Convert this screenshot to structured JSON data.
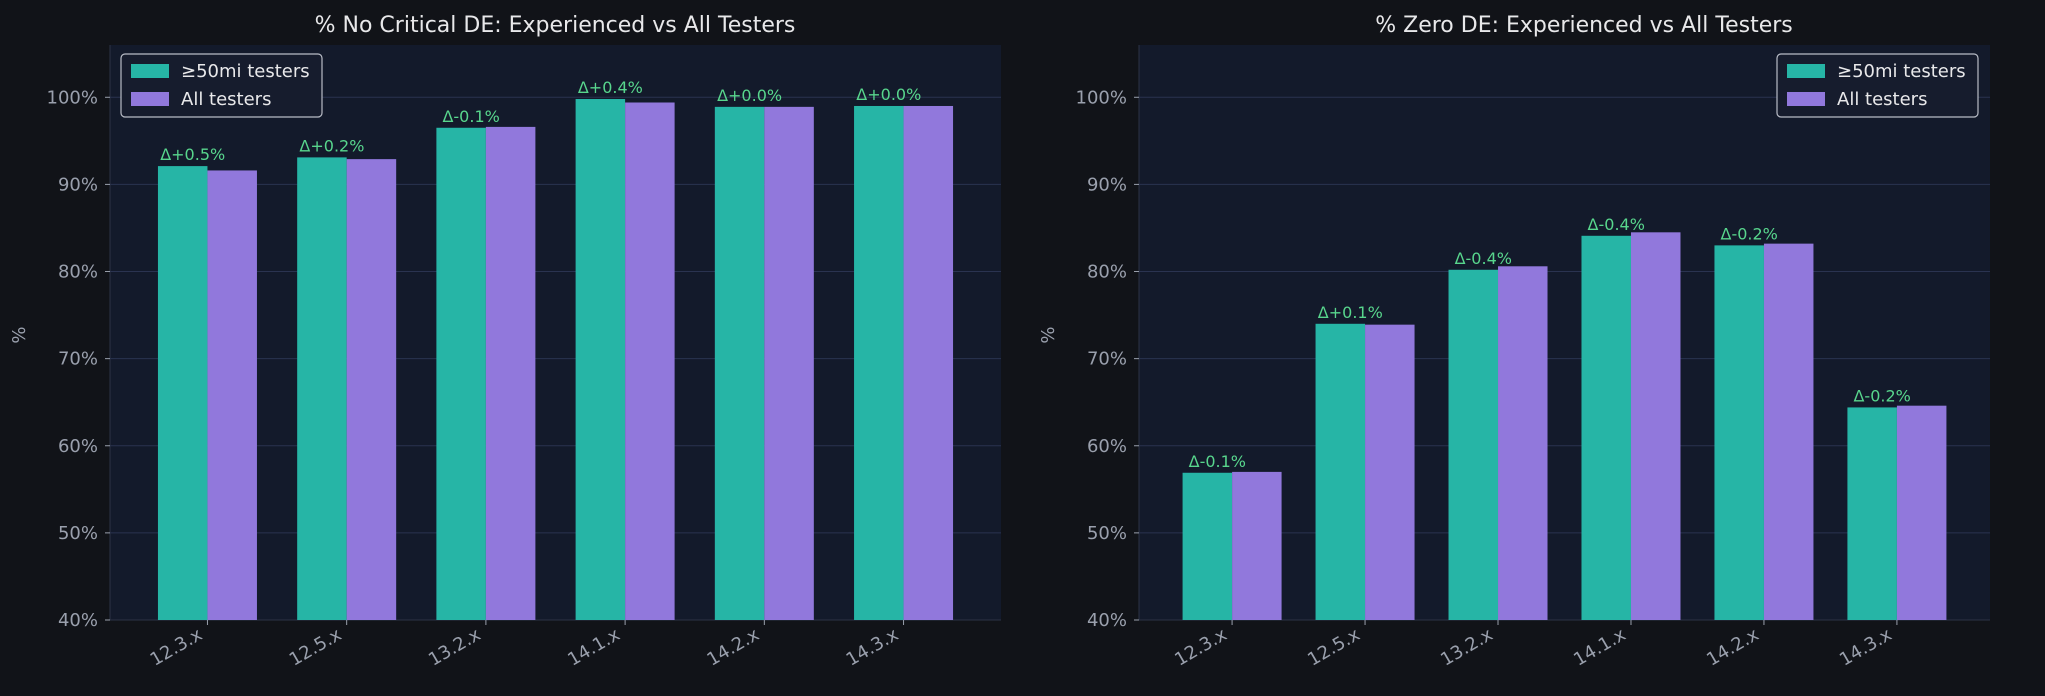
{
  "colors": {
    "background": "#111318",
    "plot_bg": "#131a2b",
    "experienced": "#26b5a6",
    "all": "#9178dc",
    "delta": "#58d68d",
    "grid": "#2a3350",
    "text": "#e8e8ea",
    "tick": "#9aa0ad"
  },
  "chart_data": [
    {
      "type": "bar",
      "title": "% No Critical DE: Experienced vs All Testers",
      "ylabel": "%",
      "xlabel": "",
      "ylim": [
        40,
        106
      ],
      "yticks": [
        40,
        50,
        60,
        70,
        80,
        90,
        100
      ],
      "ytick_labels": [
        "40%",
        "50%",
        "60%",
        "70%",
        "80%",
        "90%",
        "100%"
      ],
      "grid": true,
      "legend_position": "top-left",
      "categories": [
        "12.3.x",
        "12.5.x",
        "13.2.x",
        "14.1.x",
        "14.2.x",
        "14.3.x"
      ],
      "series": [
        {
          "name": "≥50mi testers",
          "values": [
            92.1,
            93.1,
            96.5,
            99.8,
            98.9,
            99.0
          ]
        },
        {
          "name": "All testers",
          "values": [
            91.6,
            92.9,
            96.6,
            99.4,
            98.9,
            99.0
          ]
        }
      ],
      "annotations": [
        "Δ+0.5%",
        "Δ+0.2%",
        "Δ-0.1%",
        "Δ+0.4%",
        "Δ+0.0%",
        "Δ+0.0%"
      ]
    },
    {
      "type": "bar",
      "title": "% Zero DE: Experienced vs All Testers",
      "ylabel": "%",
      "xlabel": "",
      "ylim": [
        40,
        106
      ],
      "yticks": [
        40,
        50,
        60,
        70,
        80,
        90,
        100
      ],
      "ytick_labels": [
        "40%",
        "50%",
        "60%",
        "70%",
        "80%",
        "90%",
        "100%"
      ],
      "grid": true,
      "legend_position": "top-right",
      "categories": [
        "12.3.x",
        "12.5.x",
        "13.2.x",
        "14.1.x",
        "14.2.x",
        "14.3.x"
      ],
      "series": [
        {
          "name": "≥50mi testers",
          "values": [
            56.9,
            74.0,
            80.2,
            84.1,
            83.0,
            64.4
          ]
        },
        {
          "name": "All testers",
          "values": [
            57.0,
            73.9,
            80.6,
            84.5,
            83.2,
            64.6
          ]
        }
      ],
      "annotations": [
        "Δ-0.1%",
        "Δ+0.1%",
        "Δ-0.4%",
        "Δ-0.4%",
        "Δ-0.2%",
        "Δ-0.2%"
      ]
    }
  ]
}
